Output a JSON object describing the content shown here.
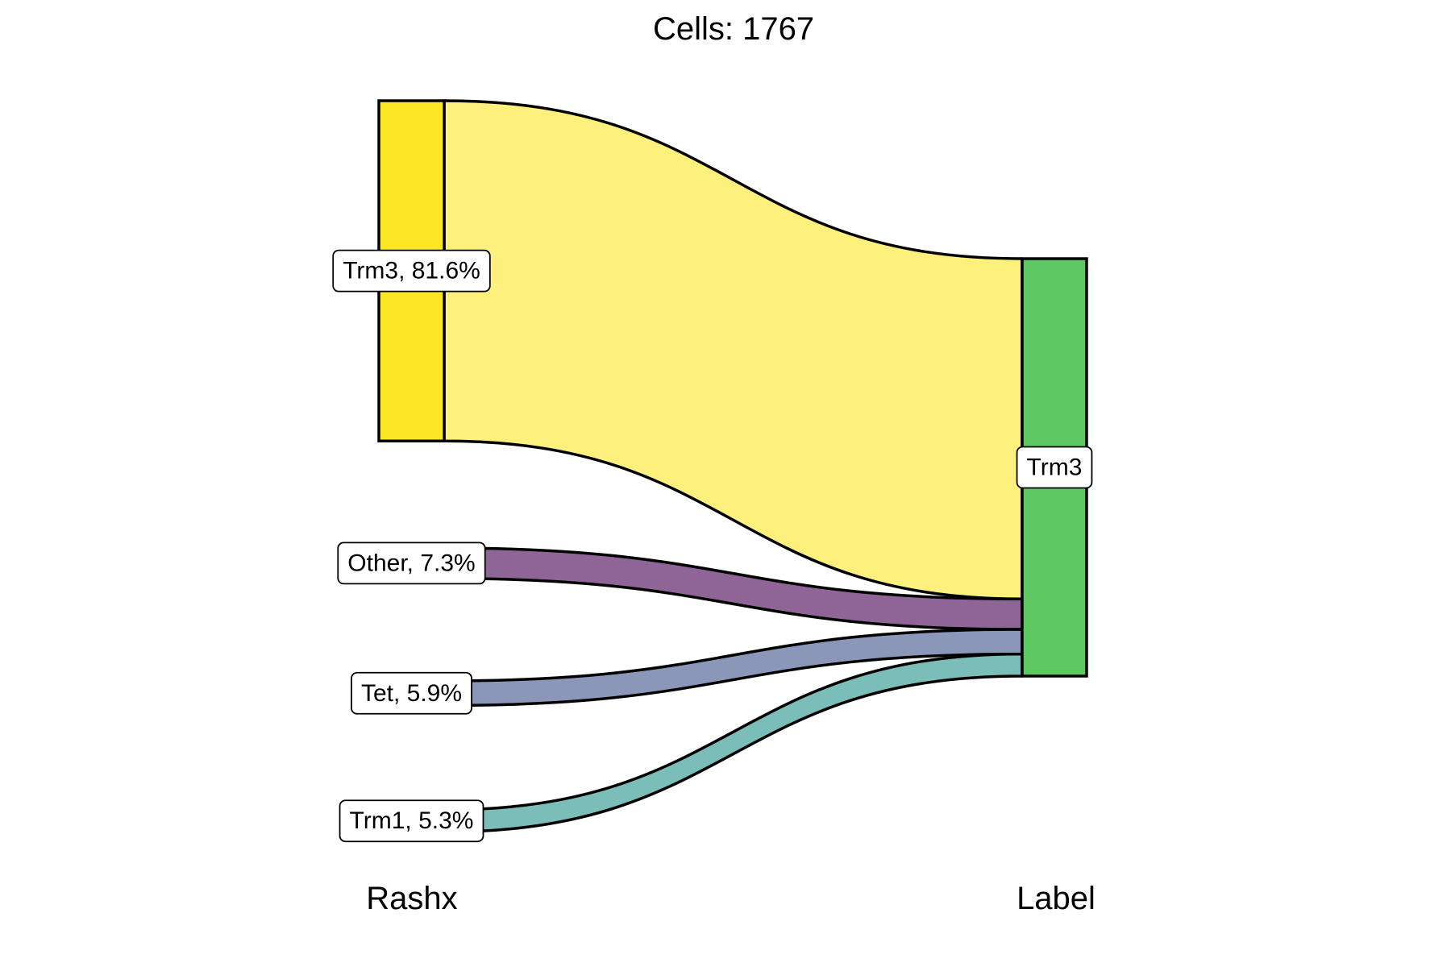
{
  "chart_data": {
    "type": "alluvial",
    "title": "Cells:  1767",
    "total_cells": 1767,
    "axes": [
      "Rashx",
      "Label"
    ],
    "left_nodes": [
      {
        "name": "Trm3",
        "label": "Trm3, 81.6%",
        "percent": 81.6,
        "color": "#FDE725",
        "flow_color": "#FDF07C"
      },
      {
        "name": "Other",
        "label": "Other, 7.3%",
        "percent": 7.3,
        "color": "#8F6598",
        "flow_color": "#8F6598"
      },
      {
        "name": "Tet",
        "label": "Tet, 5.9%",
        "percent": 5.9,
        "color": "#8A97B8",
        "flow_color": "#8A97B8"
      },
      {
        "name": "Trm1",
        "label": "Trm1, 5.3%",
        "percent": 5.3,
        "color": "#7BBDB9",
        "flow_color": "#7BBDB9"
      }
    ],
    "right_nodes": [
      {
        "name": "Trm3",
        "label": "Trm3",
        "percent": 100,
        "color": "#5EC962"
      }
    ],
    "flows": [
      {
        "from": "Trm3",
        "to": "Trm3",
        "percent": 81.6
      },
      {
        "from": "Other",
        "to": "Trm3",
        "percent": 7.3
      },
      {
        "from": "Tet",
        "to": "Trm3",
        "percent": 5.9
      },
      {
        "from": "Trm1",
        "to": "Trm3",
        "percent": 5.3
      }
    ]
  }
}
